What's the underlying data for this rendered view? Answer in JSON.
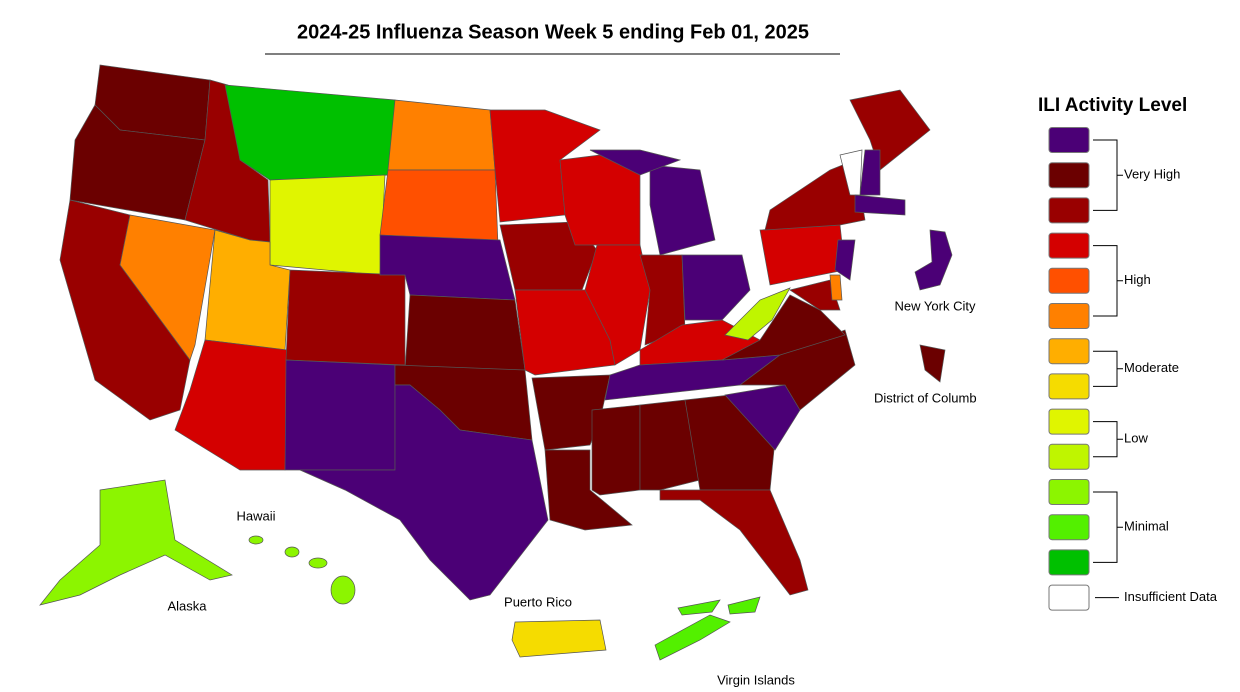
{
  "title": "2024-25 Influenza Season Week 5 ending Feb 01, 2025",
  "map": {
    "labels": [
      "New York City",
      "District of Columb",
      "Hawaii",
      "Alaska",
      "Puerto Rico",
      "Virgin Islands"
    ]
  },
  "legend": {
    "title": "ILI Activity Level",
    "groups": [
      {
        "label": "Very High",
        "colors": [
          "#4b0076",
          "#6b0000",
          "#990000"
        ]
      },
      {
        "label": "High",
        "colors": [
          "#d40000",
          "#ff5000",
          "#ff8000"
        ]
      },
      {
        "label": "Moderate",
        "colors": [
          "#ffae00",
          "#f5dc00"
        ]
      },
      {
        "label": "Low",
        "colors": [
          "#e0f500",
          "#bff500"
        ]
      },
      {
        "label": "Minimal",
        "colors": [
          "#8cf500",
          "#53f000",
          "#00c000"
        ]
      },
      {
        "label": "Insufficient Data",
        "colors": [
          "#ffffff"
        ]
      }
    ]
  }
}
